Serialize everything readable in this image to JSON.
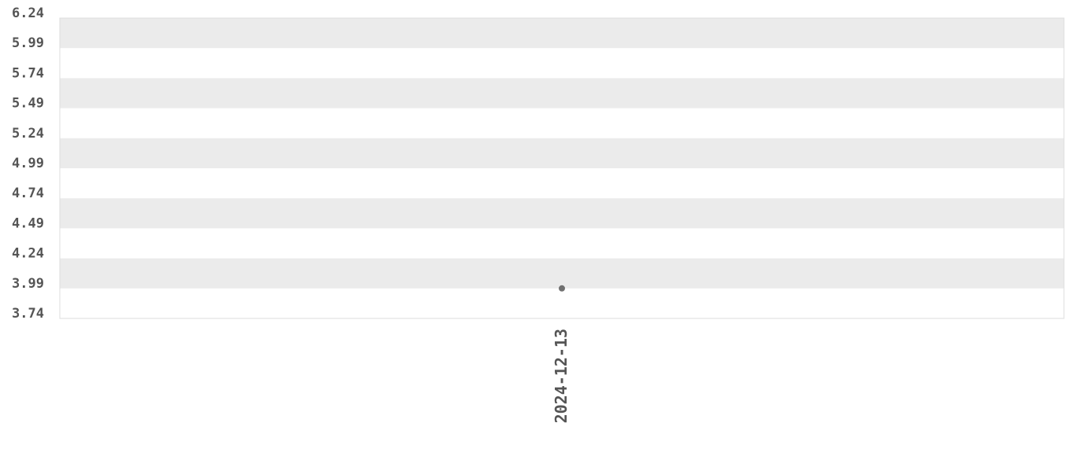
{
  "chart_data": {
    "type": "scatter",
    "title": "",
    "xlabel": "",
    "ylabel": "",
    "x_categories": [
      "2024-12-13"
    ],
    "points": [
      {
        "x": "2024-12-13",
        "y": 3.99
      }
    ],
    "y_ticks": [
      "3.74",
      "3.99",
      "4.24",
      "4.49",
      "4.74",
      "4.99",
      "5.24",
      "5.49",
      "5.74",
      "5.99",
      "6.24"
    ],
    "ylim": [
      3.74,
      6.24
    ],
    "grid": "alternating horizontal bands",
    "colors": {
      "band": "#ebebeb",
      "point": "#707070",
      "tick_text": "#555555",
      "border": "#dddddd"
    }
  }
}
